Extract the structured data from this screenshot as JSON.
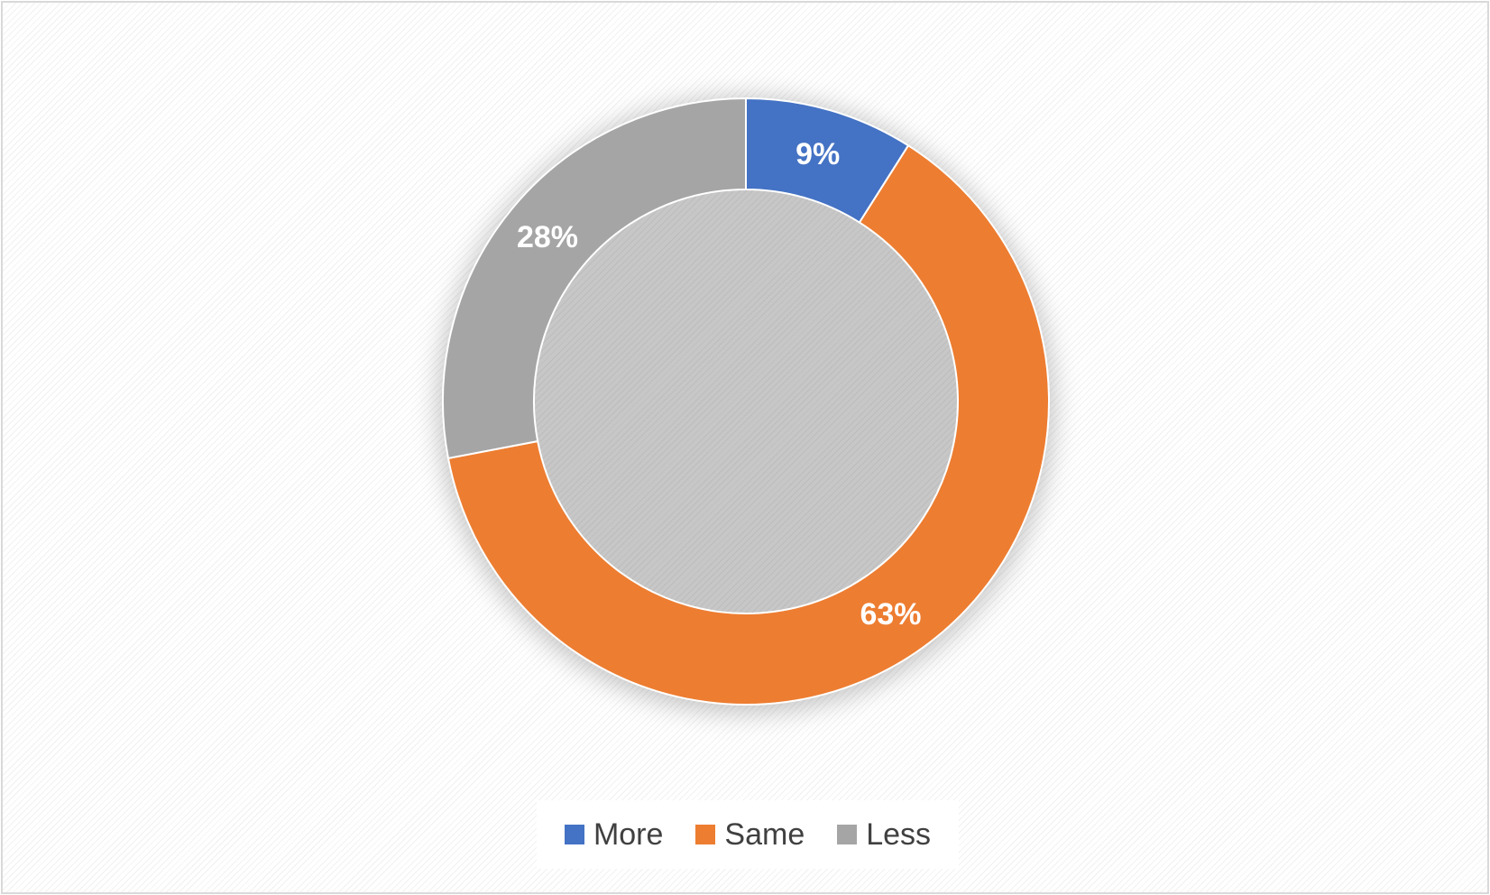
{
  "chart_data": {
    "type": "pie",
    "style": "donut",
    "title": "",
    "categories": [
      "More",
      "Same",
      "Less"
    ],
    "values": [
      9,
      63,
      28
    ],
    "value_labels": [
      "9%",
      "63%",
      "28%"
    ],
    "colors": [
      "#4472c4",
      "#ed7d31",
      "#a5a5a5"
    ],
    "legend_position": "bottom",
    "grid": false
  },
  "legend": [
    {
      "label": "More",
      "color": "#4472c4"
    },
    {
      "label": "Same",
      "color": "#ed7d31"
    },
    {
      "label": "Less",
      "color": "#a5a5a5"
    }
  ]
}
